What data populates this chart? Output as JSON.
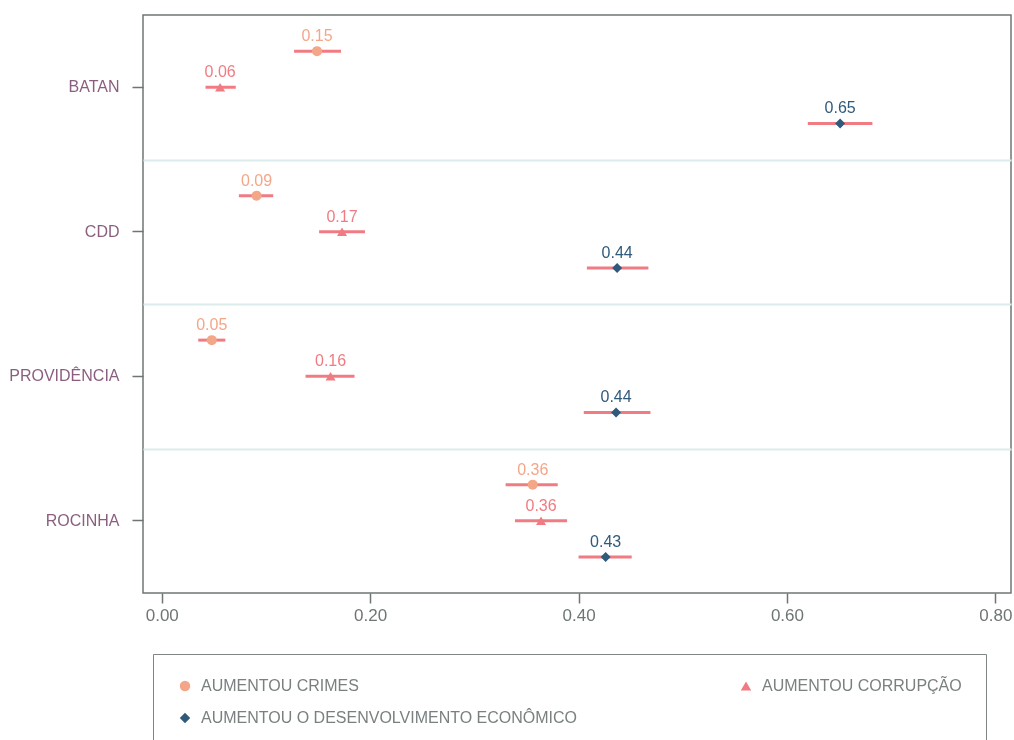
{
  "chart_data": {
    "type": "scatter",
    "orientation": "horizontal",
    "categories": [
      "BATAN",
      "CDD",
      "PROVIDÊNCIA",
      "ROCINHA"
    ],
    "series": [
      {
        "name": "AUMENTOU CRIMES",
        "color": "#f4a688",
        "marker": "circle",
        "values": [
          0.149,
          0.091,
          0.048,
          0.356
        ],
        "errors": [
          [
            0.127,
            0.172
          ],
          [
            0.074,
            0.107
          ],
          [
            0.035,
            0.061
          ],
          [
            0.33,
            0.38
          ]
        ],
        "value_labels": [
          "0.15",
          "0.09",
          "0.05",
          "0.36"
        ]
      },
      {
        "name": "AUMENTOU CORRUPÇÃO",
        "color": "#f07b82",
        "marker": "triangle",
        "values": [
          0.056,
          0.173,
          0.162,
          0.364
        ],
        "errors": [
          [
            0.042,
            0.071
          ],
          [
            0.151,
            0.195
          ],
          [
            0.138,
            0.185
          ],
          [
            0.339,
            0.389
          ]
        ],
        "value_labels": [
          "0.06",
          "0.17",
          "0.16",
          "0.36"
        ]
      },
      {
        "name": "AUMENTOU O DESENVOLVIMENTO ECONÔMICO",
        "color": "#305a7c",
        "marker": "diamond",
        "values": [
          0.651,
          0.437,
          0.436,
          0.426
        ],
        "errors": [
          [
            0.62,
            0.682
          ],
          [
            0.408,
            0.467
          ],
          [
            0.405,
            0.469
          ],
          [
            0.4,
            0.451
          ]
        ],
        "value_labels": [
          "0.65",
          "0.44",
          "0.44",
          "0.43"
        ]
      }
    ],
    "xlim": [
      -0.018,
      0.815
    ],
    "xticks": [
      {
        "value": 0,
        "label": "0.00"
      },
      {
        "value": 0.2,
        "label": "0.20"
      },
      {
        "value": 0.4,
        "label": "0.40"
      },
      {
        "value": 0.6,
        "label": "0.60"
      },
      {
        "value": 0.8,
        "label": "0.80"
      }
    ],
    "grid": "y",
    "legend": "bottom"
  }
}
